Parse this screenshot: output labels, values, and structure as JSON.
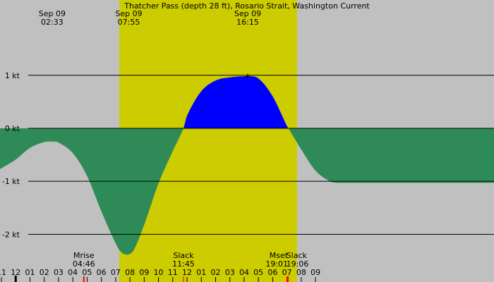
{
  "chart_data": {
    "type": "area",
    "title": "Thatcher Pass (depth 28 ft), Rosario Strait, Washington Current",
    "xlabel": "",
    "ylabel": "",
    "x_range_hours": [
      -1.1,
      33.5
    ],
    "ylim": [
      -2.9,
      2.42
    ],
    "y_ticks": [
      {
        "value": 1,
        "label": "1 kt"
      },
      {
        "value": 0,
        "label": "0 kt"
      },
      {
        "value": -1,
        "label": "-1 kt"
      },
      {
        "value": -2,
        "label": "-2 kt"
      }
    ],
    "x_tick_labels": [
      "11",
      "12",
      "01",
      "02",
      "03",
      "04",
      "05",
      "06",
      "07",
      "08",
      "09",
      "10",
      "11",
      "12",
      "01",
      "02",
      "03",
      "04",
      "05",
      "06",
      "07",
      "08",
      "09"
    ],
    "daylight_hours": [
      7.25,
      19.7
    ],
    "colors": {
      "background": "#c0c0c0",
      "daylight": "#cccc00",
      "ebb": "#2e8b57",
      "flood": "#0000ff",
      "gridline": "#000000",
      "moon_marker": "#ff0000"
    },
    "series": [
      {
        "x": [
          -1.1,
          0,
          1,
          2,
          2.55,
          3,
          4,
          5,
          6,
          7,
          7.4,
          7.92,
          8.3,
          9,
          10,
          11,
          11.75,
          12,
          13,
          14,
          15,
          16.25,
          17,
          18,
          19,
          19.1,
          20,
          21,
          22,
          22.5
        ],
        "values": [
          -0.77,
          -0.59,
          -0.37,
          -0.26,
          -0.25,
          -0.27,
          -0.47,
          -0.9,
          -1.57,
          -2.17,
          -2.34,
          -2.38,
          -2.28,
          -1.82,
          -1.04,
          -0.43,
          0,
          0.24,
          0.7,
          0.9,
          0.96,
          0.98,
          0.94,
          0.6,
          0.04,
          0,
          -0.4,
          -0.8,
          -1.0,
          -1.03
        ]
      }
    ],
    "annotations_top": [
      {
        "date": "Sep 09",
        "time": "02:33",
        "hour": 2.55
      },
      {
        "date": "Sep 09",
        "time": "07:55",
        "hour": 7.92
      },
      {
        "date": "Sep 09",
        "time": "16:15",
        "hour": 16.25
      }
    ],
    "annotations_bottom": [
      {
        "label": "Mrise",
        "time": "04:46",
        "hour": 4.77
      },
      {
        "label": "Slack",
        "time": "11:45",
        "hour": 11.75
      },
      {
        "label": "Mset",
        "time": "19:01",
        "hour": 19.02
      },
      {
        "label": "Slack",
        "time": "19:06",
        "hour": 19.1
      }
    ]
  }
}
